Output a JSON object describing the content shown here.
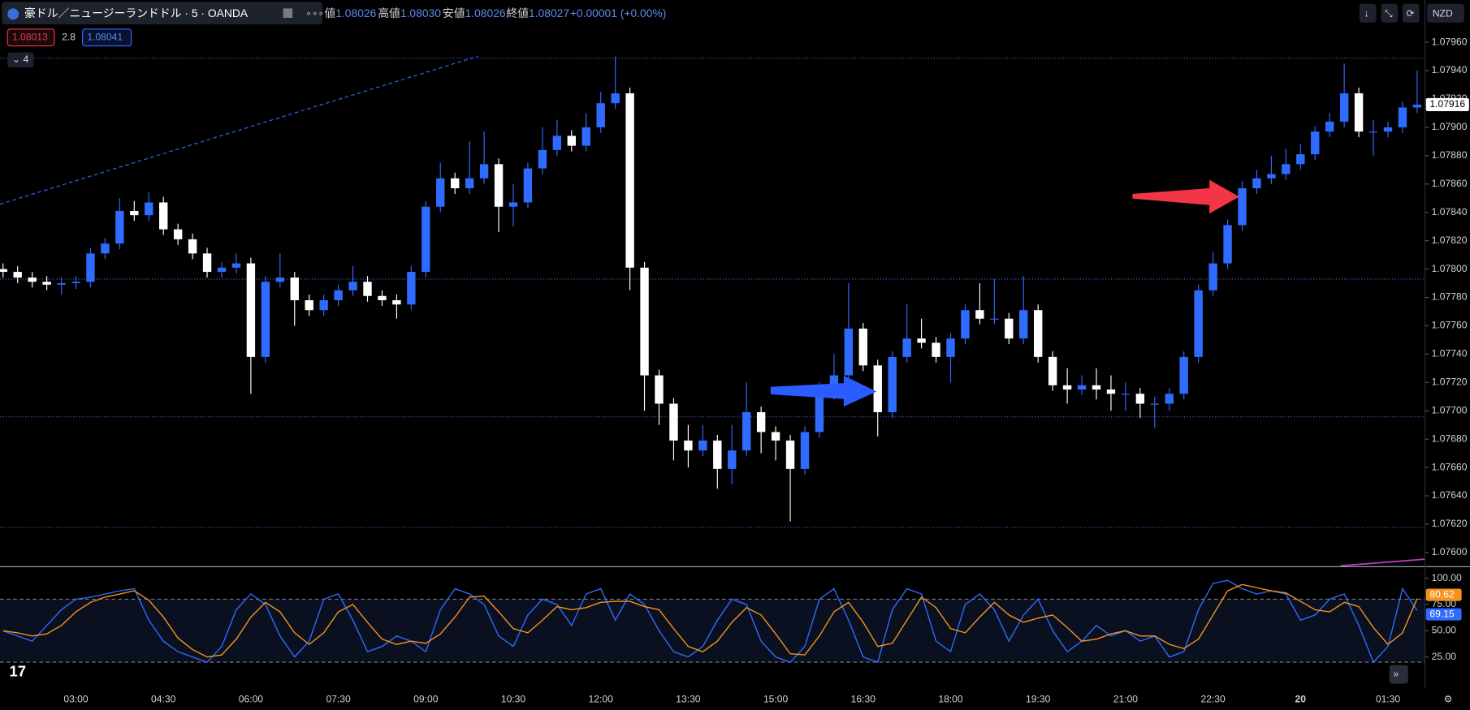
{
  "header": {
    "symbol": "豪ドル／ニュージーランドドル · 5 · OANDA",
    "ohlc": [
      {
        "label": "値",
        "value": "1.08026"
      },
      {
        "label": "高値",
        "value": "1.08030"
      },
      {
        "label": "安値",
        "value": "1.08026"
      },
      {
        "label": "終値",
        "value": "1.08027"
      }
    ],
    "change": "+0.00001 (+0.00%)",
    "sell": "1.08013",
    "spread": "2.8",
    "buy": "1.08041",
    "indicators": "4",
    "currency": "NZD"
  },
  "chart_data": [
    {
      "type": "candlestick",
      "up_color": "#2f6bff",
      "down_color": "#ffffff",
      "grid": false,
      "categories": [
        null,
        null,
        null,
        null,
        null,
        "03:00",
        null,
        null,
        null,
        null,
        null,
        "04:30",
        null,
        null,
        null,
        null,
        null,
        "06:00",
        null,
        null,
        null,
        null,
        null,
        "07:30",
        null,
        null,
        null,
        null,
        null,
        "09:00",
        null,
        null,
        null,
        null,
        null,
        "10:30",
        null,
        null,
        null,
        null,
        null,
        "12:00",
        null,
        null,
        null,
        null,
        null,
        "13:30",
        null,
        null,
        null,
        null,
        null,
        "15:00",
        null,
        null,
        null,
        null,
        null,
        "16:30",
        null,
        null,
        null,
        null,
        null,
        "18:00",
        null,
        null,
        null,
        null,
        null,
        "19:30",
        null,
        null,
        null,
        null,
        null,
        "21:00",
        null,
        null,
        null,
        null,
        null,
        "22:30",
        null,
        null,
        null,
        null,
        null,
        "20",
        null,
        null,
        null,
        null,
        null,
        "01:30",
        null,
        null
      ],
      "open": [
        1.078,
        1.07798,
        1.07794,
        1.07791,
        1.07789,
        1.0779,
        1.07791,
        1.07811,
        1.07818,
        1.07841,
        1.07838,
        1.07847,
        1.07828,
        1.07821,
        1.07811,
        1.07798,
        1.07801,
        1.07804,
        1.07738,
        1.07791,
        1.07794,
        1.07778,
        1.07771,
        1.07778,
        1.07785,
        1.07791,
        1.07781,
        1.07778,
        1.07775,
        1.07798,
        1.07844,
        1.07864,
        1.07857,
        1.07864,
        1.07874,
        1.07844,
        1.07847,
        1.07871,
        1.07884,
        1.07894,
        1.07887,
        1.079,
        1.07917,
        1.07924,
        1.07801,
        1.07725,
        1.07705,
        1.07679,
        1.07672,
        1.07679,
        1.07659,
        1.07672,
        1.07699,
        1.07685,
        1.07679,
        1.07659,
        1.07685,
        1.07712,
        1.07725,
        1.07758,
        1.07732,
        1.07699,
        1.07738,
        1.07751,
        1.07748,
        1.07738,
        1.07751,
        1.07771,
        1.07765,
        1.07765,
        1.07751,
        1.07771,
        1.07738,
        1.07718,
        1.07715,
        1.07718,
        1.07715,
        1.07712,
        1.07712,
        1.07705,
        1.07705,
        1.07712,
        1.07738,
        1.07785,
        1.07804,
        1.07831,
        1.07857,
        1.07864,
        1.07867,
        1.07874,
        1.07881,
        1.07897,
        1.07904,
        1.07924,
        1.07897,
        1.07897,
        1.079,
        1.07914
      ],
      "high": [
        1.07804,
        1.07802,
        1.07798,
        1.07795,
        1.07794,
        1.07795,
        1.07815,
        1.07822,
        1.0785,
        1.07848,
        1.07854,
        1.07851,
        1.07832,
        1.07825,
        1.07815,
        1.07805,
        1.07811,
        1.07808,
        1.07795,
        1.07811,
        1.07798,
        1.07782,
        1.07782,
        1.07789,
        1.07802,
        1.07795,
        1.07785,
        1.07782,
        1.07802,
        1.07848,
        1.07875,
        1.07868,
        1.0789,
        1.07897,
        1.07878,
        1.0786,
        1.07875,
        1.079,
        1.07905,
        1.07898,
        1.0791,
        1.07925,
        1.0795,
        1.07928,
        1.07805,
        1.07729,
        1.07709,
        1.0769,
        1.0769,
        1.07683,
        1.0769,
        1.0772,
        1.07703,
        1.07689,
        1.07683,
        1.07689,
        1.0772,
        1.0774,
        1.0779,
        1.07762,
        1.07736,
        1.07742,
        1.07775,
        1.07765,
        1.07752,
        1.07755,
        1.07775,
        1.0779,
        1.07793,
        1.07769,
        1.07795,
        1.07775,
        1.07742,
        1.0773,
        1.07725,
        1.0773,
        1.07725,
        1.0772,
        1.07716,
        1.0771,
        1.07716,
        1.07742,
        1.07789,
        1.07812,
        1.07835,
        1.07862,
        1.0787,
        1.0788,
        1.07885,
        1.07888,
        1.07901,
        1.0791,
        1.07945,
        1.07928,
        1.07905,
        1.07904,
        1.07918,
        1.0794
      ],
      "low": [
        1.07794,
        1.0779,
        1.07787,
        1.07785,
        1.07782,
        1.07786,
        1.07787,
        1.07807,
        1.07814,
        1.07834,
        1.07834,
        1.07824,
        1.07817,
        1.07807,
        1.07794,
        1.07794,
        1.07797,
        1.07712,
        1.07734,
        1.07787,
        1.0776,
        1.07767,
        1.07767,
        1.07774,
        1.07781,
        1.07777,
        1.07774,
        1.07765,
        1.07771,
        1.07794,
        1.0784,
        1.07853,
        1.07853,
        1.0786,
        1.07826,
        1.0783,
        1.07843,
        1.07867,
        1.0788,
        1.07883,
        1.07883,
        1.07896,
        1.07913,
        1.07785,
        1.077,
        1.0769,
        1.07665,
        1.0766,
        1.07668,
        1.07645,
        1.07648,
        1.07668,
        1.0767,
        1.07665,
        1.07622,
        1.07655,
        1.07681,
        1.07708,
        1.07721,
        1.07728,
        1.07682,
        1.07695,
        1.07734,
        1.07744,
        1.07734,
        1.0772,
        1.07747,
        1.07761,
        1.07761,
        1.07747,
        1.07747,
        1.07734,
        1.07714,
        1.07705,
        1.07711,
        1.07708,
        1.077,
        1.077,
        1.07695,
        1.07688,
        1.077,
        1.07708,
        1.07734,
        1.07781,
        1.078,
        1.07827,
        1.07853,
        1.0786,
        1.07863,
        1.0787,
        1.07877,
        1.07893,
        1.079,
        1.07893,
        1.0788,
        1.07893,
        1.07896,
        1.0791
      ],
      "close": [
        1.07798,
        1.07794,
        1.07791,
        1.07789,
        1.0779,
        1.07791,
        1.07811,
        1.07818,
        1.07841,
        1.07838,
        1.07847,
        1.07828,
        1.07821,
        1.07811,
        1.07798,
        1.07801,
        1.07804,
        1.07738,
        1.07791,
        1.07794,
        1.07778,
        1.07771,
        1.07778,
        1.07785,
        1.07791,
        1.07781,
        1.07778,
        1.07775,
        1.07798,
        1.07844,
        1.07864,
        1.07857,
        1.07864,
        1.07874,
        1.07844,
        1.07847,
        1.07871,
        1.07884,
        1.07894,
        1.07887,
        1.079,
        1.07917,
        1.07924,
        1.07801,
        1.07725,
        1.07705,
        1.07679,
        1.07672,
        1.07679,
        1.07659,
        1.07672,
        1.07699,
        1.07685,
        1.07679,
        1.07659,
        1.07685,
        1.07712,
        1.07725,
        1.07758,
        1.07732,
        1.07699,
        1.07738,
        1.07751,
        1.07748,
        1.07738,
        1.07751,
        1.07771,
        1.07765,
        1.07765,
        1.07751,
        1.07771,
        1.07738,
        1.07718,
        1.07715,
        1.07718,
        1.07715,
        1.07712,
        1.07712,
        1.07705,
        1.07705,
        1.07712,
        1.07738,
        1.07785,
        1.07804,
        1.07831,
        1.07857,
        1.07864,
        1.07867,
        1.07874,
        1.07881,
        1.07897,
        1.07904,
        1.07924,
        1.07897,
        1.07897,
        1.079,
        1.07914,
        1.07916
      ],
      "ylim": [
        1.0759,
        1.0797
      ],
      "yticks": [
        {
          "value": 1.076,
          "label": "1.07600"
        },
        {
          "value": 1.0762,
          "label": "1.07620"
        },
        {
          "value": 1.0764,
          "label": "1.07640"
        },
        {
          "value": 1.0766,
          "label": "1.07660"
        },
        {
          "value": 1.0768,
          "label": "1.07680"
        },
        {
          "value": 1.077,
          "label": "1.07700"
        },
        {
          "value": 1.0772,
          "label": "1.07720"
        },
        {
          "value": 1.0774,
          "label": "1.07740"
        },
        {
          "value": 1.0776,
          "label": "1.07760"
        },
        {
          "value": 1.0778,
          "label": "1.07780"
        },
        {
          "value": 1.078,
          "label": "1.07800"
        },
        {
          "value": 1.0782,
          "label": "1.07820"
        },
        {
          "value": 1.0784,
          "label": "1.07840"
        },
        {
          "value": 1.0786,
          "label": "1.07860"
        },
        {
          "value": 1.0788,
          "label": "1.07880"
        },
        {
          "value": 1.079,
          "label": "1.07900"
        },
        {
          "value": 1.0792,
          "label": "1.07920"
        },
        {
          "value": 1.0794,
          "label": "1.07940"
        },
        {
          "value": 1.0796,
          "label": "1.07960"
        }
      ]
    },
    {
      "type": "line",
      "grid": false,
      "bands": [
        20,
        80
      ],
      "series": [
        {
          "color": "#2f6bff",
          "values": [
            50,
            45,
            40,
            55,
            70,
            80,
            82,
            85,
            88,
            90,
            60,
            40,
            30,
            25,
            20,
            35,
            70,
            85,
            75,
            45,
            25,
            40,
            80,
            85,
            60,
            30,
            35,
            45,
            40,
            30,
            70,
            90,
            85,
            75,
            45,
            35,
            65,
            80,
            75,
            55,
            85,
            90,
            60,
            85,
            75,
            50,
            30,
            25,
            35,
            60,
            80,
            75,
            40,
            25,
            20,
            35,
            80,
            90,
            60,
            25,
            20,
            70,
            90,
            85,
            40,
            30,
            75,
            85,
            70,
            40,
            65,
            80,
            50,
            30,
            40,
            55,
            45,
            50,
            40,
            45,
            25,
            30,
            70,
            95,
            98,
            90,
            85,
            88,
            85,
            60,
            65,
            80,
            85,
            55,
            20,
            35,
            90,
            69.15
          ]
        },
        {
          "color": "#f7931a",
          "values": [
            50,
            48,
            45,
            47,
            55,
            68,
            77,
            82,
            85,
            88,
            79,
            63,
            43,
            32,
            25,
            27,
            42,
            63,
            77,
            68,
            48,
            37,
            48,
            68,
            75,
            58,
            42,
            37,
            40,
            38,
            47,
            63,
            82,
            83,
            68,
            52,
            48,
            60,
            73,
            70,
            72,
            77,
            78,
            78,
            73,
            70,
            52,
            35,
            30,
            40,
            58,
            72,
            65,
            47,
            28,
            27,
            45,
            68,
            77,
            58,
            35,
            38,
            60,
            82,
            72,
            52,
            48,
            63,
            77,
            65,
            58,
            62,
            65,
            53,
            40,
            42,
            47,
            50,
            45,
            45,
            37,
            33,
            42,
            65,
            88,
            94,
            91,
            88,
            86,
            78,
            70,
            68,
            77,
            73,
            53,
            37,
            48,
            80.62
          ]
        }
      ],
      "ylim": [
        -5,
        111
      ],
      "yticks": [
        {
          "value": 25,
          "label": "25.00"
        },
        {
          "value": 50,
          "label": "50.00"
        },
        {
          "value": 75,
          "label": "75.00"
        },
        {
          "value": 100,
          "label": "100.00"
        }
      ]
    }
  ]
}
